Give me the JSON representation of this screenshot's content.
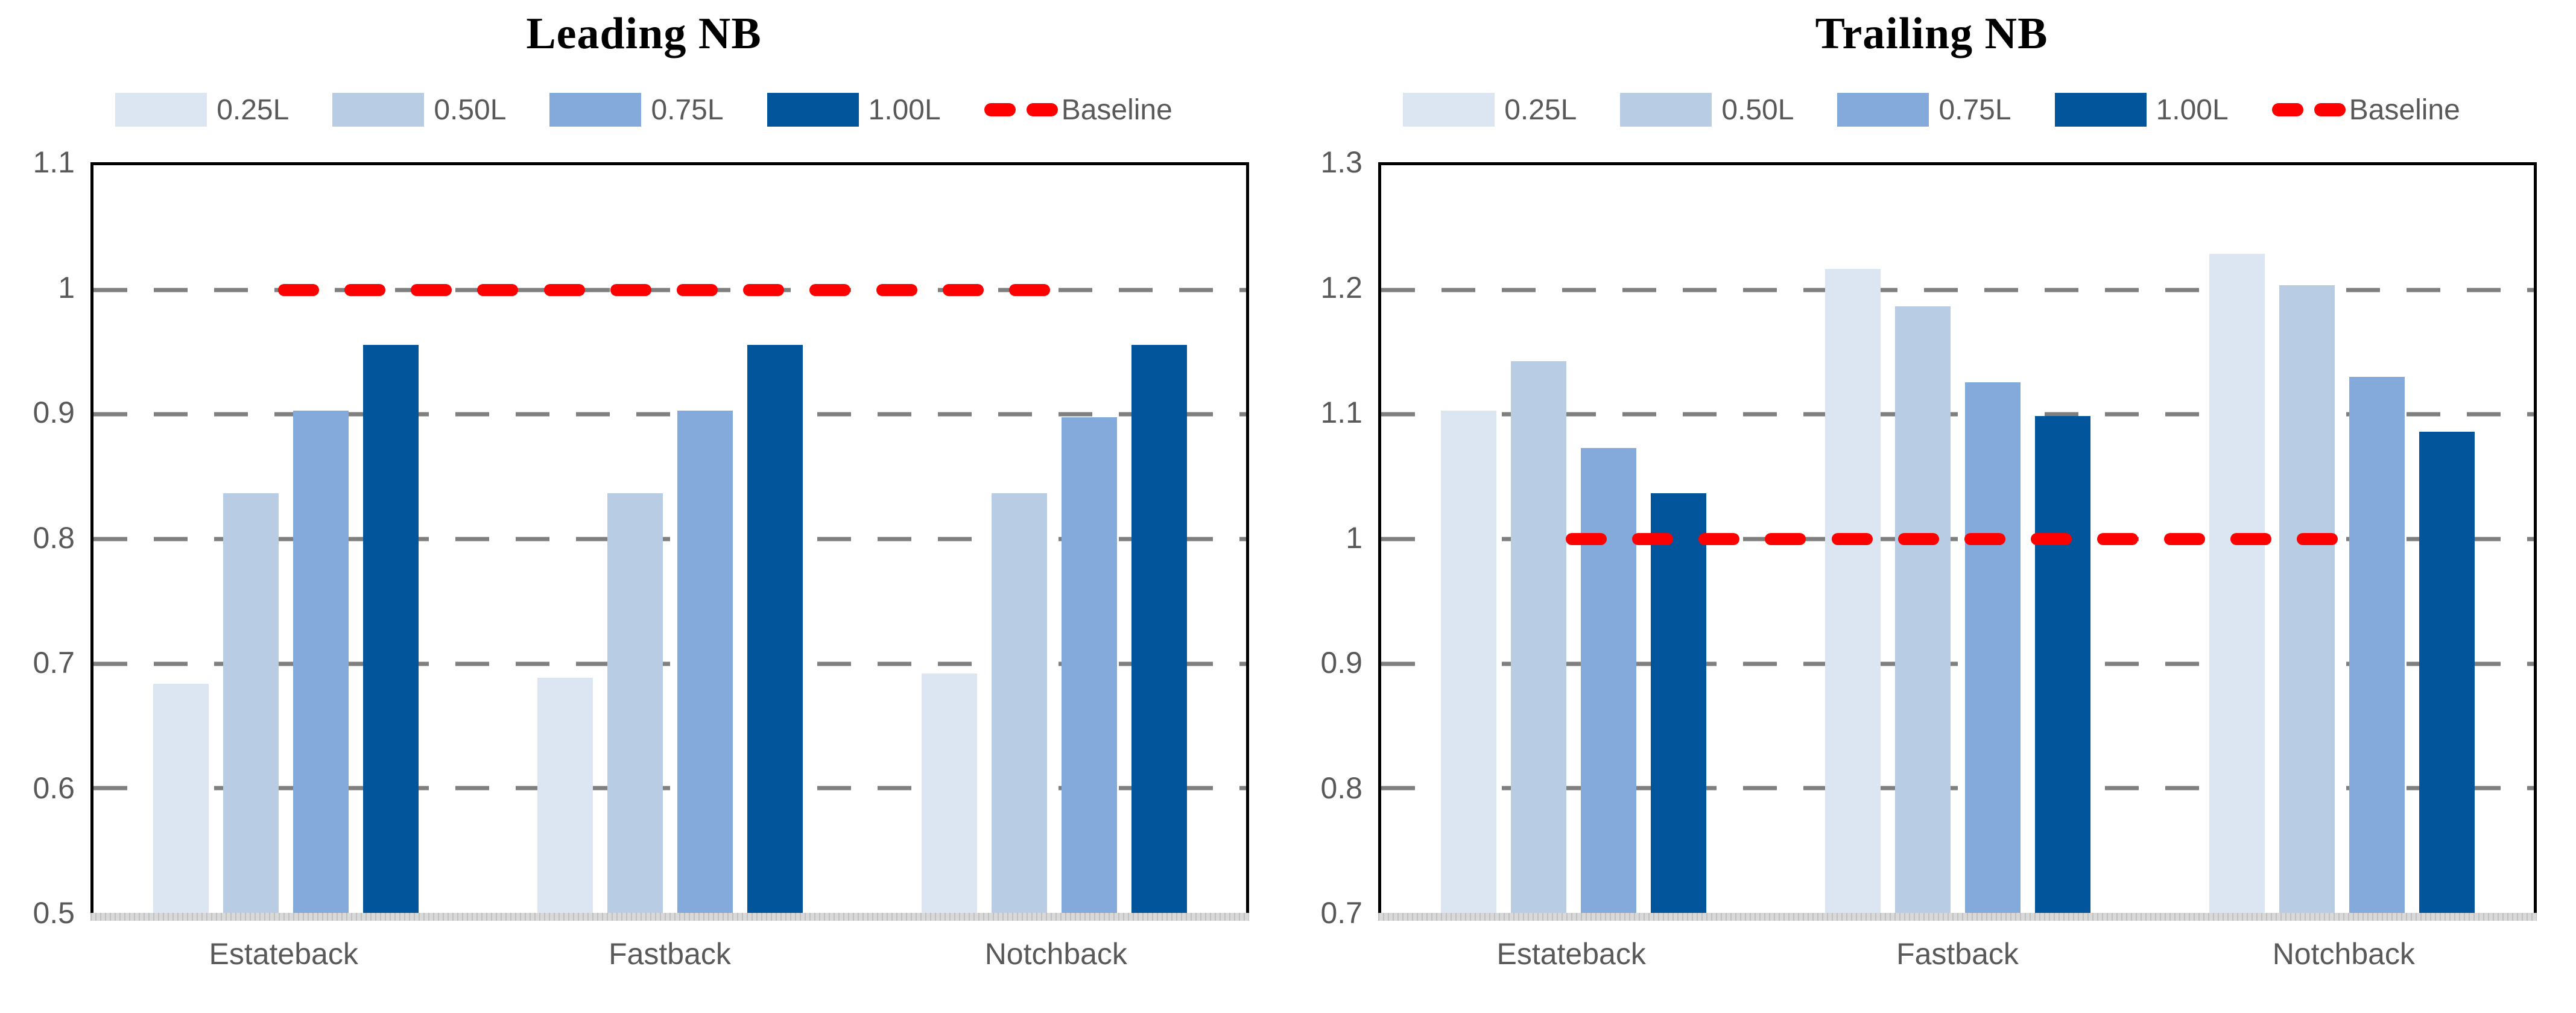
{
  "style": {
    "grid_color": "#7f7f7f",
    "axis_strip_color": "#d9d9d9",
    "axis_strip_tick_color": "#c0c0c0",
    "label_color": "#595959",
    "plot_border_color": "#000000",
    "background": "#ffffff"
  },
  "chart_data": [
    {
      "type": "bar",
      "title": "Leading NB",
      "categories": [
        "Estateback",
        "Fastback",
        "Notchback"
      ],
      "series": [
        {
          "name": "0.25L",
          "color": "#dce6f2",
          "values": [
            0.684,
            0.689,
            0.692
          ]
        },
        {
          "name": "0.50L",
          "color": "#b8cce4",
          "values": [
            0.837,
            0.837,
            0.837
          ]
        },
        {
          "name": "0.75L",
          "color": "#84aadc",
          "values": [
            0.903,
            0.903,
            0.898
          ]
        },
        {
          "name": "1.00L",
          "color": "#02549b",
          "values": [
            0.956,
            0.956,
            0.956
          ]
        }
      ],
      "baseline": {
        "label": "Baseline",
        "value": 1.0,
        "color": "#ff0000",
        "span": [
          0.16,
          0.83
        ]
      },
      "ylim": [
        0.5,
        1.1
      ],
      "ytick_step": 0.1,
      "ytick_labels": [
        "1.1",
        "1",
        "0.9",
        "0.8",
        "0.7",
        "0.6",
        "0.5"
      ],
      "grid": "horizontal-dashed",
      "legend_position": "top"
    },
    {
      "type": "bar",
      "title": "Trailing NB",
      "categories": [
        "Estateback",
        "Fastback",
        "Notchback"
      ],
      "series": [
        {
          "name": "0.25L",
          "color": "#dce6f2",
          "values": [
            1.103,
            1.217,
            1.229
          ]
        },
        {
          "name": "0.50L",
          "color": "#b8cce4",
          "values": [
            1.143,
            1.187,
            1.204
          ]
        },
        {
          "name": "0.75L",
          "color": "#84aadc",
          "values": [
            1.073,
            1.126,
            1.13
          ]
        },
        {
          "name": "1.00L",
          "color": "#02549b",
          "values": [
            1.037,
            1.099,
            1.086
          ]
        }
      ],
      "baseline": {
        "label": "Baseline",
        "value": 1.0,
        "color": "#ff0000",
        "span": [
          0.16,
          0.83
        ]
      },
      "ylim": [
        0.7,
        1.3
      ],
      "ytick_step": 0.1,
      "ytick_labels": [
        "1.3",
        "1.2",
        "1.1",
        "1",
        "0.9",
        "0.8",
        "0.7"
      ],
      "grid": "horizontal-dashed",
      "legend_position": "top"
    }
  ]
}
